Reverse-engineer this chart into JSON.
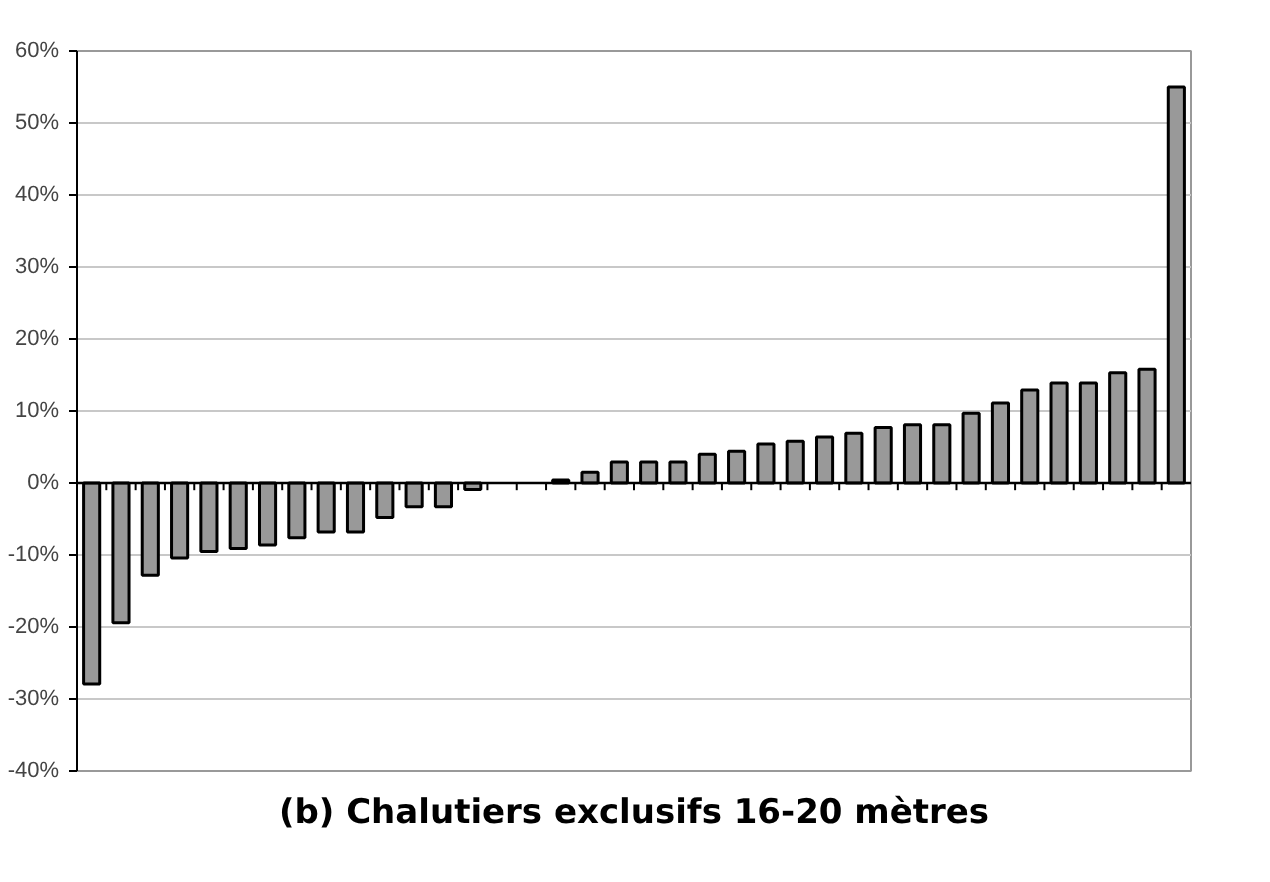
{
  "chart_data": {
    "type": "bar",
    "title": "(b) Chalutiers exclusifs 16-20 mètres",
    "categories": [
      null,
      null,
      null,
      null,
      null,
      null,
      null,
      null,
      null,
      null,
      null,
      null,
      null,
      null,
      null,
      null,
      null,
      null,
      null,
      null,
      null,
      null,
      null,
      null,
      null,
      null,
      null,
      null,
      null,
      null,
      null,
      null,
      null,
      null,
      null,
      null,
      null,
      null
    ],
    "values": [
      -27.9,
      -19.4,
      -12.8,
      -10.4,
      -9.5,
      -9.1,
      -8.6,
      -7.6,
      -6.8,
      -6.8,
      -4.8,
      -3.3,
      -3.3,
      -0.9,
      null,
      null,
      0.4,
      1.5,
      2.9,
      2.9,
      2.9,
      4.0,
      4.4,
      5.4,
      5.8,
      6.4,
      6.9,
      7.7,
      8.1,
      8.1,
      9.7,
      11.1,
      12.9,
      13.9,
      13.9,
      15.3,
      15.8,
      55.0
    ],
    "color": "#999999",
    "ylim": [
      -40,
      60
    ],
    "yticks": [
      {
        "value": -40,
        "label": "-40%"
      },
      {
        "value": -30,
        "label": "-30%"
      },
      {
        "value": -20,
        "label": "-20%"
      },
      {
        "value": -10,
        "label": "-10%"
      },
      {
        "value": 0,
        "label": "0%"
      },
      {
        "value": 10,
        "label": "10%"
      },
      {
        "value": 20,
        "label": "20%"
      },
      {
        "value": 30,
        "label": "30%"
      },
      {
        "value": 40,
        "label": "40%"
      },
      {
        "value": 50,
        "label": "50%"
      },
      {
        "value": 60,
        "label": "60%"
      }
    ],
    "grid": "y"
  }
}
